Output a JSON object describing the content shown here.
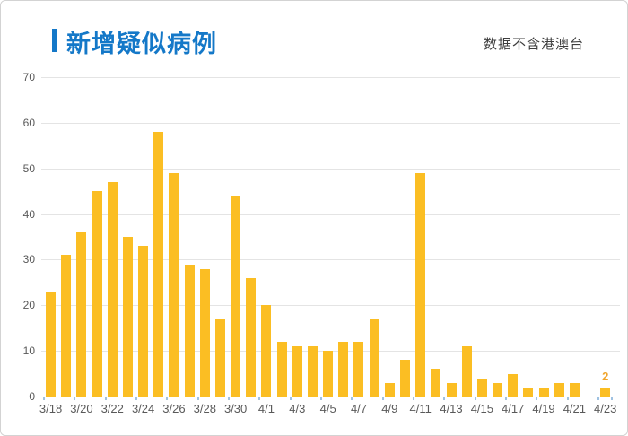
{
  "header": {
    "title": "新增疑似病例",
    "note": "数据不含港澳台"
  },
  "colors": {
    "title": "#1478c8",
    "accent_bar": "#1478c8",
    "bar": "#fbbe23",
    "annotation": "#f0a52d",
    "axis_text": "#595959",
    "gridline": "#e4e4e4",
    "tick": "#9fc2e2"
  },
  "chart_data": {
    "type": "bar",
    "title": "新增疑似病例",
    "subtitle": "数据不含港澳台",
    "categories": [
      "3/18",
      "3/19",
      "3/20",
      "3/21",
      "3/22",
      "3/23",
      "3/24",
      "3/25",
      "3/26",
      "3/27",
      "3/28",
      "3/29",
      "3/30",
      "3/31",
      "4/1",
      "4/2",
      "4/3",
      "4/4",
      "4/5",
      "4/6",
      "4/7",
      "4/8",
      "4/9",
      "4/10",
      "4/11",
      "4/12",
      "4/13",
      "4/14",
      "4/15",
      "4/16",
      "4/17",
      "4/18",
      "4/19",
      "4/20",
      "4/21",
      "4/22",
      "4/23"
    ],
    "values": [
      23,
      31,
      36,
      45,
      47,
      35,
      33,
      58,
      49,
      29,
      28,
      17,
      44,
      26,
      20,
      12,
      11,
      11,
      10,
      12,
      12,
      17,
      3,
      8,
      49,
      6,
      3,
      11,
      4,
      3,
      5,
      2,
      2,
      3,
      3,
      0,
      2
    ],
    "x_labeled_every": 2,
    "xlabel": "",
    "ylabel": "",
    "ylim": [
      0,
      70
    ],
    "y_ticks": [
      0,
      10,
      20,
      30,
      40,
      50,
      60,
      70
    ],
    "grid": true,
    "legend_position": "none",
    "last_value_label": "2"
  }
}
